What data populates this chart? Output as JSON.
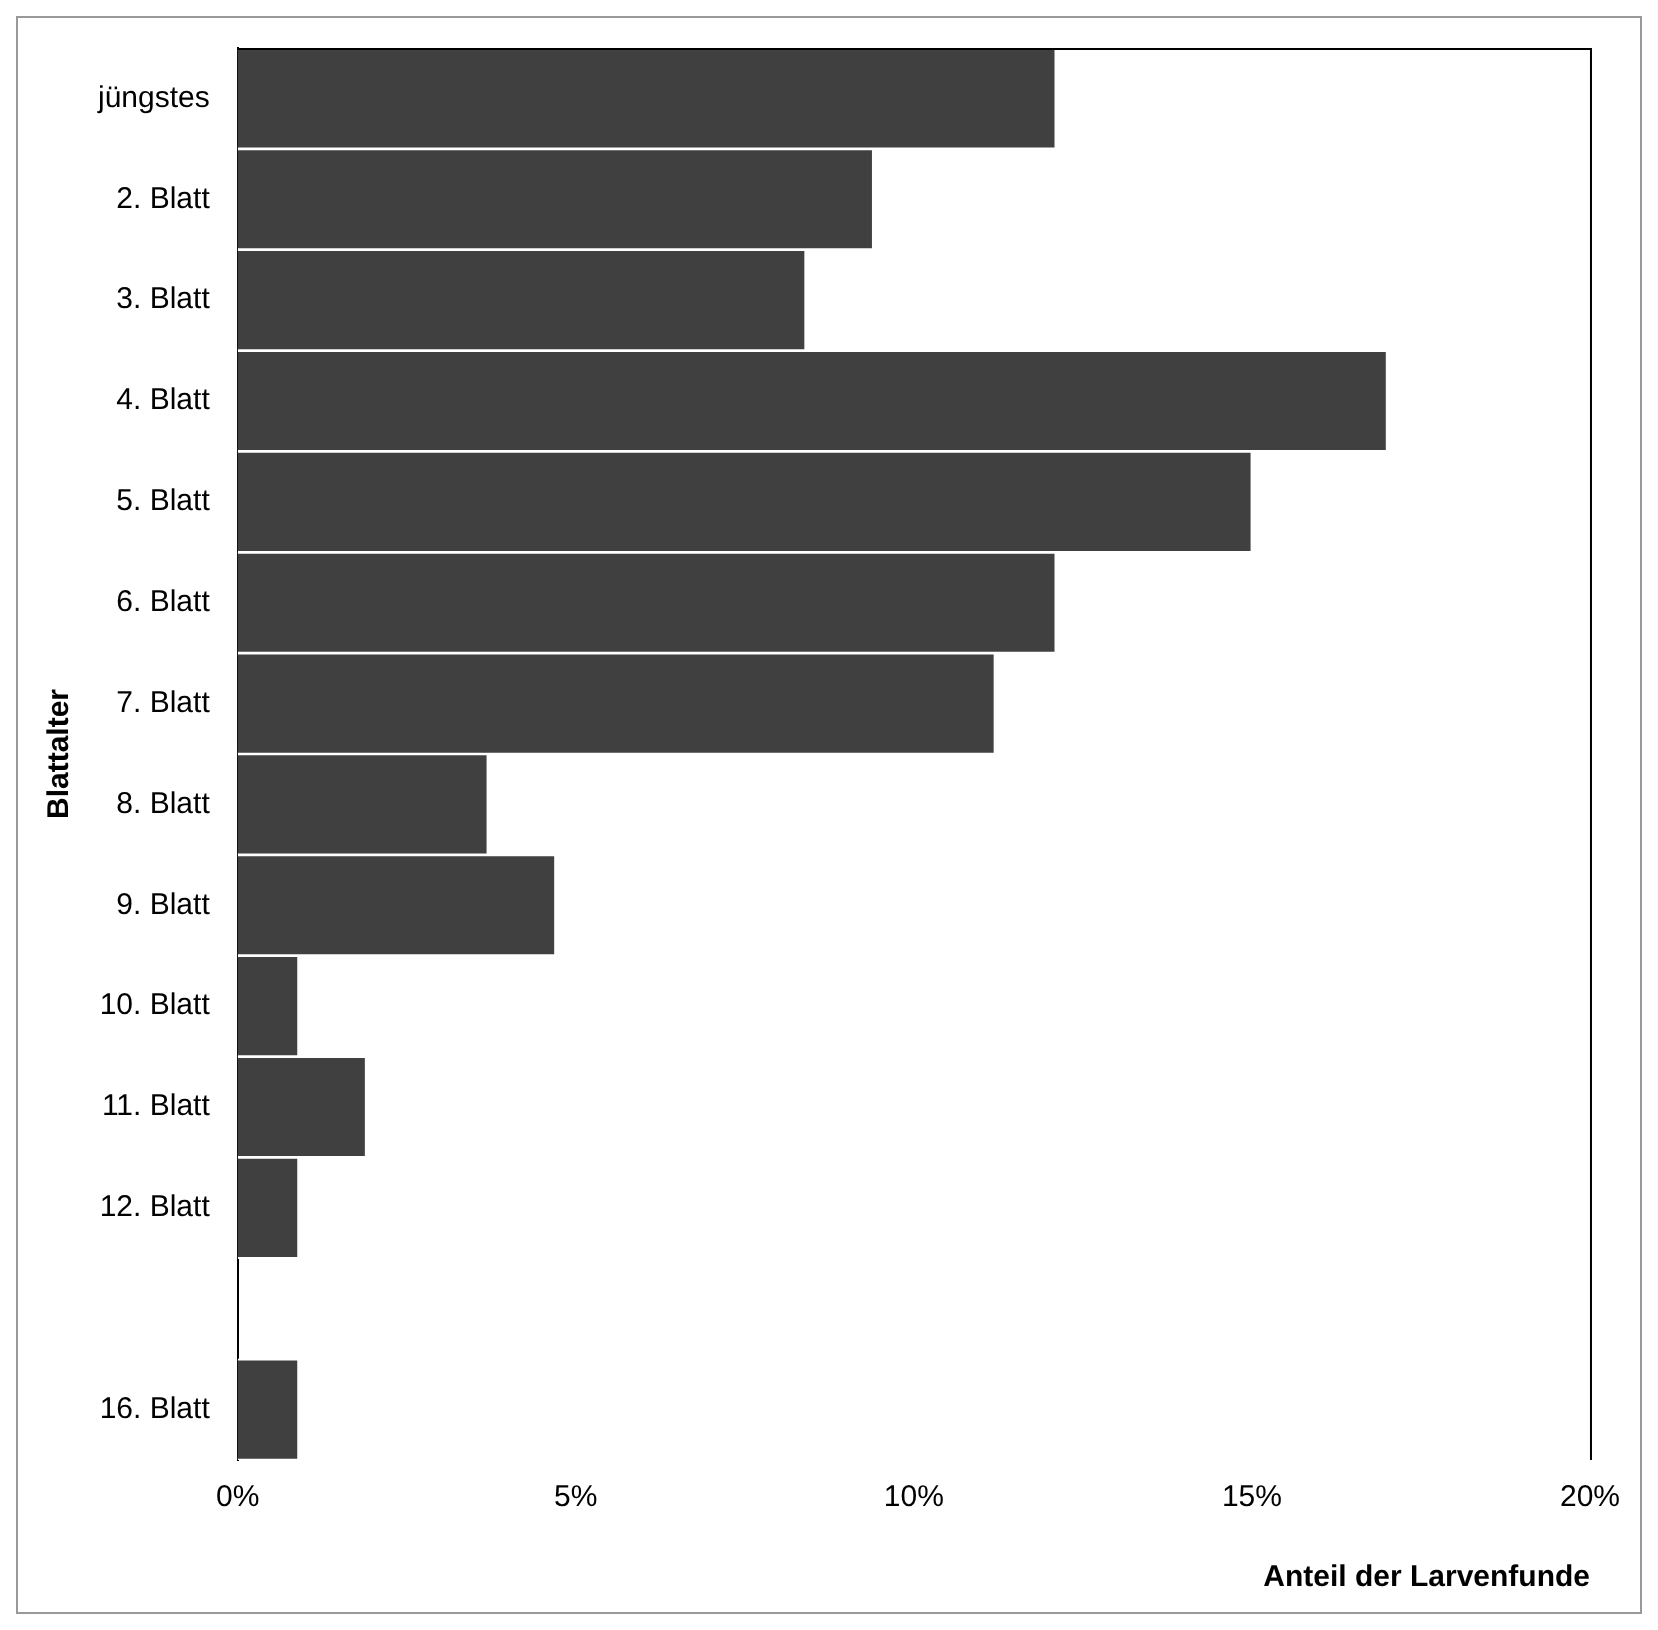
{
  "chart_data": {
    "type": "bar",
    "orientation": "horizontal",
    "xlabel": "Anteil der Larvenfunde",
    "ylabel": "Blattalter",
    "categories": [
      "jüngstes",
      "2. Blatt",
      "3. Blatt",
      "4. Blatt",
      "5. Blatt",
      "6. Blatt",
      "7. Blatt",
      "8. Blatt",
      "9. Blatt",
      "10. Blatt",
      "11. Blatt",
      "12. Blatt",
      null,
      "16. Blatt"
    ],
    "values": [
      12.1,
      9.4,
      8.4,
      17.0,
      15.0,
      12.1,
      11.2,
      3.7,
      4.7,
      0.9,
      1.9,
      0.9,
      null,
      0.9
    ],
    "color": "#404040",
    "xlim": [
      0,
      20
    ],
    "xticks": [
      {
        "value": 0,
        "label": "0%"
      },
      {
        "value": 5,
        "label": "5%"
      },
      {
        "value": 10,
        "label": "10%"
      },
      {
        "value": 15,
        "label": "15%"
      },
      {
        "value": 20,
        "label": "20%"
      }
    ],
    "grid": false,
    "legend": false
  }
}
